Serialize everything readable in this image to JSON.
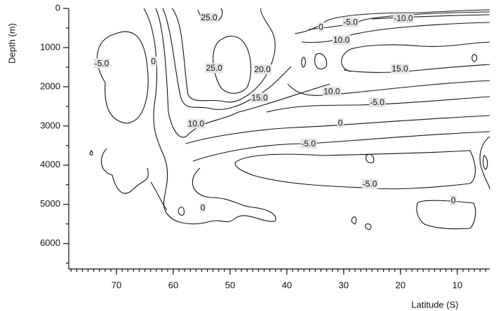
{
  "chart_data": {
    "type": "contour",
    "x_label": "Latitude (S)",
    "y_label": "Depth (m)",
    "xlim": [
      78.4,
      4.3
    ],
    "ylim": [
      6650,
      0
    ],
    "xticks": [
      70,
      60,
      50,
      40,
      30,
      20,
      10
    ],
    "yticks": [
      0,
      1000,
      2000,
      3000,
      4000,
      5000,
      6000
    ],
    "contour_labels": {
      "x": [
        53.7,
        34.0,
        28.8,
        19.5,
        30.4,
        72.6,
        63.5,
        52.8,
        44.3,
        20.1,
        44.8,
        32.1,
        24.1,
        56.0,
        30.6,
        36.2,
        25.4,
        54.8,
        10.7
      ],
      "y": [
        245,
        490,
        367,
        262,
        822,
        1416,
        1364,
        1538,
        1573,
        1556,
        2290,
        2133,
        2413,
        2955,
        2937,
        3462,
        4493,
        5105,
        4913
      ],
      "values": [
        25,
        0,
        -5,
        -10,
        10,
        -5,
        0,
        25,
        20,
        15,
        15,
        10,
        -5,
        10,
        0,
        -5,
        -5,
        0,
        0
      ],
      "value_labels": [
        "25.0",
        "0",
        "-5.0",
        "-10.0",
        "10.0",
        "-5.0",
        "0",
        "25.0",
        "20.0",
        "15.0",
        "15.0",
        "10.0",
        "-5.0",
        "10.0",
        "0",
        "-5.0",
        "-5.0",
        "0",
        "0"
      ]
    }
  }
}
